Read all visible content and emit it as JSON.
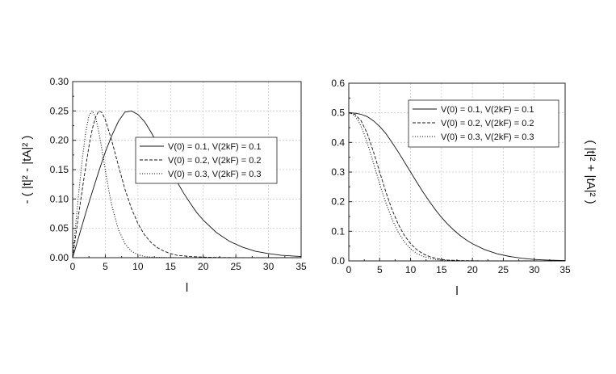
{
  "chart_data": [
    {
      "type": "line",
      "xlabel": "l",
      "ylabel": "- ( |t|² - |tA|² )",
      "xlim": [
        0,
        35
      ],
      "ylim": [
        0,
        0.3
      ],
      "xticks": [
        "0",
        "5",
        "10",
        "15",
        "20",
        "25",
        "30",
        "35"
      ],
      "yticks": [
        "0.00",
        "0.05",
        "0.10",
        "0.15",
        "0.20",
        "0.25",
        "0.30"
      ],
      "grid": true,
      "legend_position": "center-right",
      "series": [
        {
          "name": "V(0) = 0.1, V(2kF) = 0.1",
          "style": "solid",
          "x": [
            0,
            1,
            2,
            3,
            4,
            5,
            6,
            7,
            8,
            9,
            10,
            11,
            12,
            13,
            14,
            15,
            16,
            17,
            18,
            19,
            20,
            22,
            24,
            26,
            28,
            30,
            32,
            35
          ],
          "y": [
            0,
            0.038,
            0.076,
            0.112,
            0.147,
            0.18,
            0.208,
            0.232,
            0.248,
            0.25,
            0.244,
            0.232,
            0.214,
            0.194,
            0.172,
            0.15,
            0.129,
            0.11,
            0.093,
            0.077,
            0.064,
            0.043,
            0.028,
            0.018,
            0.011,
            0.007,
            0.004,
            0.002
          ]
        },
        {
          "name": "V(0) = 0.2, V(2kF) = 0.2",
          "style": "dashed",
          "x": [
            0,
            0.5,
            1,
            1.5,
            2,
            2.5,
            3,
            3.5,
            4,
            4.5,
            5,
            6,
            7,
            8,
            9,
            10,
            11,
            12,
            13,
            14,
            15,
            16,
            17,
            18,
            20,
            22,
            25,
            30,
            35
          ],
          "y": [
            0,
            0.04,
            0.08,
            0.118,
            0.155,
            0.19,
            0.219,
            0.239,
            0.25,
            0.247,
            0.235,
            0.199,
            0.157,
            0.117,
            0.084,
            0.058,
            0.039,
            0.026,
            0.017,
            0.011,
            0.007,
            0.004,
            0.003,
            0.002,
            0.001,
            0.0004,
            0.0001,
            0,
            0
          ]
        },
        {
          "name": "V(0) = 0.3, V(2kF) = 0.3",
          "style": "dotted",
          "x": [
            0,
            0.5,
            1,
            1.5,
            2,
            2.5,
            3,
            3.5,
            4,
            4.5,
            5,
            5.5,
            6,
            7,
            8,
            9,
            10,
            11,
            12,
            14,
            16,
            20,
            25,
            35
          ],
          "y": [
            0,
            0.06,
            0.118,
            0.17,
            0.214,
            0.242,
            0.25,
            0.24,
            0.215,
            0.183,
            0.149,
            0.117,
            0.089,
            0.048,
            0.024,
            0.011,
            0.005,
            0.002,
            0.001,
            0.0002,
            0,
            0,
            0,
            0
          ]
        }
      ]
    },
    {
      "type": "line",
      "xlabel": "l",
      "ylabel": "( |t|² + |tA|² )",
      "xlim": [
        0,
        35
      ],
      "ylim": [
        0,
        0.6
      ],
      "xticks": [
        "0",
        "5",
        "10",
        "15",
        "20",
        "25",
        "30",
        "35"
      ],
      "yticks": [
        "0.0",
        "0.1",
        "0.2",
        "0.3",
        "0.4",
        "0.5",
        "0.6"
      ],
      "grid": true,
      "legend_position": "top-right",
      "series": [
        {
          "name": "V(0) = 0.1, V(2kF) = 0.1",
          "style": "solid",
          "x": [
            0,
            1,
            2,
            3,
            4,
            5,
            6,
            7,
            8,
            9,
            10,
            11,
            12,
            13,
            14,
            15,
            16,
            17,
            18,
            19,
            20,
            22,
            24,
            26,
            28,
            30,
            32,
            35
          ],
          "y": [
            0.5,
            0.499,
            0.495,
            0.487,
            0.473,
            0.454,
            0.43,
            0.4,
            0.368,
            0.334,
            0.3,
            0.266,
            0.233,
            0.202,
            0.173,
            0.147,
            0.124,
            0.104,
            0.086,
            0.071,
            0.058,
            0.038,
            0.024,
            0.015,
            0.009,
            0.005,
            0.003,
            0.001
          ]
        },
        {
          "name": "V(0) = 0.2, V(2kF) = 0.2",
          "style": "dashed",
          "x": [
            0,
            1,
            2,
            3,
            4,
            5,
            6,
            7,
            8,
            9,
            10,
            11,
            12,
            13,
            14,
            15,
            16,
            18,
            20,
            25,
            30,
            35
          ],
          "y": [
            0.5,
            0.495,
            0.473,
            0.43,
            0.368,
            0.3,
            0.233,
            0.173,
            0.124,
            0.086,
            0.058,
            0.038,
            0.024,
            0.015,
            0.009,
            0.005,
            0.003,
            0.001,
            0.0004,
            0,
            0,
            0
          ]
        },
        {
          "name": "V(0) = 0.3, V(2kF) = 0.3",
          "style": "dotted",
          "x": [
            0,
            0.5,
            1,
            1.5,
            2,
            2.5,
            3,
            3.5,
            4,
            4.5,
            5,
            5.5,
            6,
            7,
            8,
            9,
            10,
            11,
            12,
            14,
            16,
            20,
            35
          ],
          "y": [
            0.5,
            0.497,
            0.489,
            0.474,
            0.454,
            0.428,
            0.398,
            0.364,
            0.33,
            0.295,
            0.26,
            0.227,
            0.196,
            0.141,
            0.097,
            0.064,
            0.041,
            0.025,
            0.015,
            0.005,
            0.001,
            0,
            0
          ]
        }
      ]
    }
  ]
}
